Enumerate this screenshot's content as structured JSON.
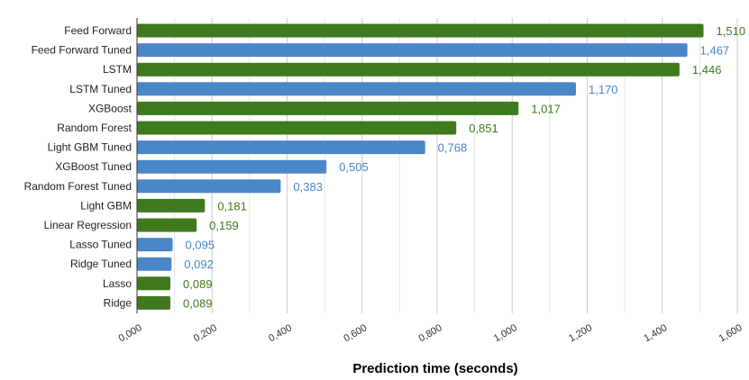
{
  "chart_data": {
    "type": "bar",
    "orientation": "horizontal",
    "xlabel": "Prediction time (seconds)",
    "ylabel": "",
    "xlim": [
      0,
      1.6
    ],
    "x_ticks": [
      "0,000",
      "0,200",
      "0,400",
      "0,600",
      "0,800",
      "1,000",
      "1,200",
      "1,400",
      "1,600"
    ],
    "grid": true,
    "legend": "none",
    "colors": {
      "base": "#3f7a1e",
      "tuned": "#4a86c8"
    },
    "bars": [
      {
        "category": "Feed Forward",
        "value": 1.51,
        "label": "1,510",
        "group": "base"
      },
      {
        "category": "Feed Forward Tuned",
        "value": 1.467,
        "label": "1,467",
        "group": "tuned"
      },
      {
        "category": "LSTM",
        "value": 1.446,
        "label": "1,446",
        "group": "base"
      },
      {
        "category": "LSTM Tuned",
        "value": 1.17,
        "label": "1,170",
        "group": "tuned"
      },
      {
        "category": "XGBoost",
        "value": 1.017,
        "label": "1,017",
        "group": "base"
      },
      {
        "category": "Random Forest",
        "value": 0.851,
        "label": "0,851",
        "group": "base"
      },
      {
        "category": "Light GBM Tuned",
        "value": 0.768,
        "label": "0,768",
        "group": "tuned"
      },
      {
        "category": "XGBoost Tuned",
        "value": 0.505,
        "label": "0,505",
        "group": "tuned"
      },
      {
        "category": "Random Forest Tuned",
        "value": 0.383,
        "label": "0,383",
        "group": "tuned"
      },
      {
        "category": "Light GBM",
        "value": 0.181,
        "label": "0,181",
        "group": "base"
      },
      {
        "category": "Linear Regression",
        "value": 0.159,
        "label": "0,159",
        "group": "base"
      },
      {
        "category": "Lasso Tuned",
        "value": 0.095,
        "label": "0,095",
        "group": "tuned"
      },
      {
        "category": "Ridge Tuned",
        "value": 0.092,
        "label": "0,092",
        "group": "tuned"
      },
      {
        "category": "Lasso",
        "value": 0.089,
        "label": "0,089",
        "group": "base"
      },
      {
        "category": "Ridge",
        "value": 0.089,
        "label": "0,089",
        "group": "base"
      }
    ]
  }
}
